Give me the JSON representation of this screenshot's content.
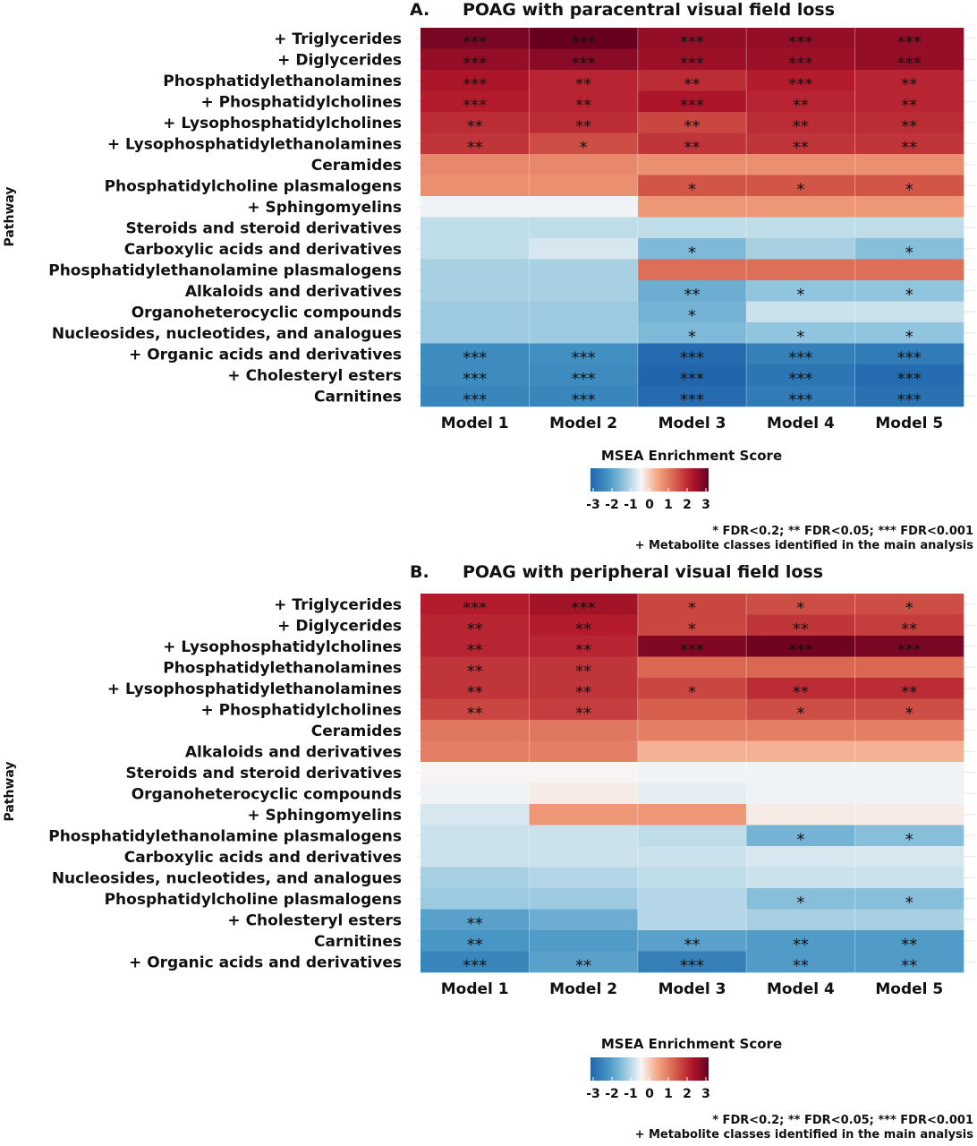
{
  "scale": {
    "title": "MSEA Enrichment Score",
    "min": -3,
    "max": 3,
    "ticks": [
      "-3",
      "-2",
      "-1",
      "0",
      "1",
      "2",
      "3"
    ],
    "colors": [
      "#2166ac",
      "#4393c3",
      "#92c5de",
      "#f7f7f7",
      "#f4a582",
      "#d6604d",
      "#b2182b",
      "#67001f"
    ]
  },
  "footnote": {
    "line1": "* FDR<0.2; ** FDR<0.05; *** FDR<0.001",
    "line2": "+ Metabolite classes identified in the main analysis"
  },
  "chart_data": [
    {
      "type": "heatmap",
      "title_prefix": "A.",
      "title": "POAG with paracentral visual field loss",
      "ylabel": "Pathway",
      "xlabel": "",
      "columns": [
        "Model 1",
        "Model 2",
        "Model 3",
        "Model 4",
        "Model 5"
      ],
      "rows": [
        "+ Triglycerides",
        "+ Diglycerides",
        "Phosphatidylethanolamines",
        "+ Phosphatidylcholines",
        "+ Lysophosphatidylcholines",
        "+ Lysophosphatidylethanolamines",
        "Ceramides",
        "Phosphatidylcholine plasmalogens",
        "+ Sphingomyelins",
        "Steroids and steroid derivatives",
        "Carboxylic acids and derivatives",
        "Phosphatidylethanolamine plasmalogens",
        "Alkaloids and derivatives",
        "Organoheterocyclic compounds",
        "Nucleosides, nucleotides, and analogues",
        "+ Organic acids and derivatives",
        "+ Cholesteryl esters",
        "Carnitines"
      ],
      "values": [
        [
          2.8,
          3.0,
          2.5,
          2.5,
          2.5
        ],
        [
          2.5,
          2.6,
          2.4,
          2.4,
          2.5
        ],
        [
          2.2,
          2.0,
          1.9,
          2.1,
          2.0
        ],
        [
          2.1,
          2.0,
          2.2,
          2.0,
          2.0
        ],
        [
          1.9,
          1.9,
          1.6,
          1.9,
          1.9
        ],
        [
          1.8,
          1.5,
          1.8,
          1.8,
          1.8
        ],
        [
          0.8,
          0.8,
          0.7,
          0.7,
          0.7
        ],
        [
          0.7,
          0.7,
          1.4,
          1.4,
          1.4
        ],
        [
          -0.5,
          -0.5,
          0.6,
          0.6,
          0.6
        ],
        [
          -0.9,
          -0.9,
          -0.9,
          -0.9,
          -0.9
        ],
        [
          -0.9,
          -0.7,
          -1.5,
          -1.1,
          -1.4
        ],
        [
          -1.1,
          -1.1,
          1.1,
          1.1,
          1.1
        ],
        [
          -1.1,
          -1.1,
          -1.7,
          -1.3,
          -1.3
        ],
        [
          -1.2,
          -1.2,
          -1.6,
          -0.8,
          -0.8
        ],
        [
          -1.2,
          -1.2,
          -1.5,
          -1.3,
          -1.3
        ],
        [
          -2.3,
          -2.2,
          -2.9,
          -2.5,
          -2.6
        ],
        [
          -2.3,
          -2.3,
          -3.0,
          -2.7,
          -2.9
        ],
        [
          -2.4,
          -2.4,
          -2.9,
          -2.6,
          -2.8
        ]
      ],
      "significance": [
        [
          "***",
          "***",
          "***",
          "***",
          "***"
        ],
        [
          "***",
          "***",
          "***",
          "***",
          "***"
        ],
        [
          "***",
          "**",
          "**",
          "***",
          "**"
        ],
        [
          "***",
          "**",
          "***",
          "**",
          "**"
        ],
        [
          "**",
          "**",
          "**",
          "**",
          "**"
        ],
        [
          "**",
          "*",
          "**",
          "**",
          "**"
        ],
        [
          "",
          "",
          "",
          "",
          ""
        ],
        [
          "",
          "",
          "*",
          "*",
          "*"
        ],
        [
          "",
          "",
          "",
          "",
          ""
        ],
        [
          "",
          "",
          "",
          "",
          ""
        ],
        [
          "",
          "",
          "*",
          "",
          "*"
        ],
        [
          "",
          "",
          "",
          "",
          ""
        ],
        [
          "",
          "",
          "**",
          "*",
          "*"
        ],
        [
          "",
          "",
          "*",
          "",
          ""
        ],
        [
          "",
          "",
          "*",
          "*",
          "*"
        ],
        [
          "***",
          "***",
          "***",
          "***",
          "***"
        ],
        [
          "***",
          "***",
          "***",
          "***",
          "***"
        ],
        [
          "***",
          "***",
          "***",
          "***",
          "***"
        ]
      ]
    },
    {
      "type": "heatmap",
      "title_prefix": "B.",
      "title": "POAG with peripheral visual field loss",
      "ylabel": "Pathway",
      "xlabel": "",
      "columns": [
        "Model 1",
        "Model 2",
        "Model 3",
        "Model 4",
        "Model 5"
      ],
      "rows": [
        "+ Triglycerides",
        "+ Diglycerides",
        "+ Lysophosphatidylcholines",
        "Phosphatidylethanolamines",
        "+ Lysophosphatidylethanolamines",
        "+ Phosphatidylcholines",
        "Ceramides",
        "Alkaloids and derivatives",
        "Steroids and steroid derivatives",
        "Organoheterocyclic compounds",
        "+ Sphingomyelins",
        "Phosphatidylethanolamine plasmalogens",
        "Carboxylic acids and derivatives",
        "Nucleosides, nucleotides, and analogues",
        "Phosphatidylcholine plasmalogens",
        "+ Cholesteryl esters",
        "Carnitines",
        "+ Organic acids and derivatives"
      ],
      "values": [
        [
          2.1,
          2.3,
          1.6,
          1.5,
          1.5
        ],
        [
          2.0,
          2.1,
          1.6,
          1.8,
          1.7
        ],
        [
          2.0,
          2.0,
          2.7,
          2.9,
          2.8
        ],
        [
          1.8,
          1.8,
          1.2,
          1.2,
          1.2
        ],
        [
          1.8,
          1.8,
          1.6,
          1.9,
          1.9
        ],
        [
          1.6,
          1.7,
          1.3,
          1.5,
          1.5
        ],
        [
          1.0,
          1.0,
          0.9,
          0.9,
          0.9
        ],
        [
          0.9,
          0.9,
          0.3,
          0.3,
          0.3
        ],
        [
          -0.4,
          -0.4,
          -0.5,
          -0.5,
          -0.5
        ],
        [
          -0.5,
          -0.3,
          -0.6,
          -0.5,
          -0.5
        ],
        [
          -0.7,
          0.6,
          0.6,
          -0.3,
          -0.3
        ],
        [
          -0.8,
          -0.8,
          -0.9,
          -1.6,
          -1.4
        ],
        [
          -0.8,
          -0.8,
          -0.8,
          -0.7,
          -0.7
        ],
        [
          -1.1,
          -1.0,
          -0.9,
          -0.8,
          -0.8
        ],
        [
          -1.2,
          -1.2,
          -1.0,
          -1.4,
          -1.4
        ],
        [
          -1.9,
          -1.7,
          -1.0,
          -1.1,
          -1.1
        ],
        [
          -2.1,
          -2.0,
          -1.9,
          -2.0,
          -2.0
        ],
        [
          -2.4,
          -1.9,
          -2.5,
          -2.0,
          -2.0
        ]
      ],
      "significance": [
        [
          "***",
          "***",
          "*",
          "*",
          "*"
        ],
        [
          "**",
          "**",
          "*",
          "**",
          "**"
        ],
        [
          "**",
          "**",
          "***",
          "***",
          "***"
        ],
        [
          "**",
          "**",
          "",
          "",
          ""
        ],
        [
          "**",
          "**",
          "*",
          "**",
          "**"
        ],
        [
          "**",
          "**",
          "",
          "*",
          "*"
        ],
        [
          "",
          "",
          "",
          "",
          ""
        ],
        [
          "",
          "",
          "",
          "",
          ""
        ],
        [
          "",
          "",
          "",
          "",
          ""
        ],
        [
          "",
          "",
          "",
          "",
          ""
        ],
        [
          "",
          "",
          "",
          "",
          ""
        ],
        [
          "",
          "",
          "",
          "*",
          "*"
        ],
        [
          "",
          "",
          "",
          "",
          ""
        ],
        [
          "",
          "",
          "",
          "",
          ""
        ],
        [
          "",
          "",
          "",
          "*",
          "*"
        ],
        [
          "**",
          "",
          "",
          "",
          ""
        ],
        [
          "**",
          "",
          "**",
          "**",
          "**"
        ],
        [
          "***",
          "**",
          "***",
          "**",
          "**"
        ]
      ]
    }
  ]
}
